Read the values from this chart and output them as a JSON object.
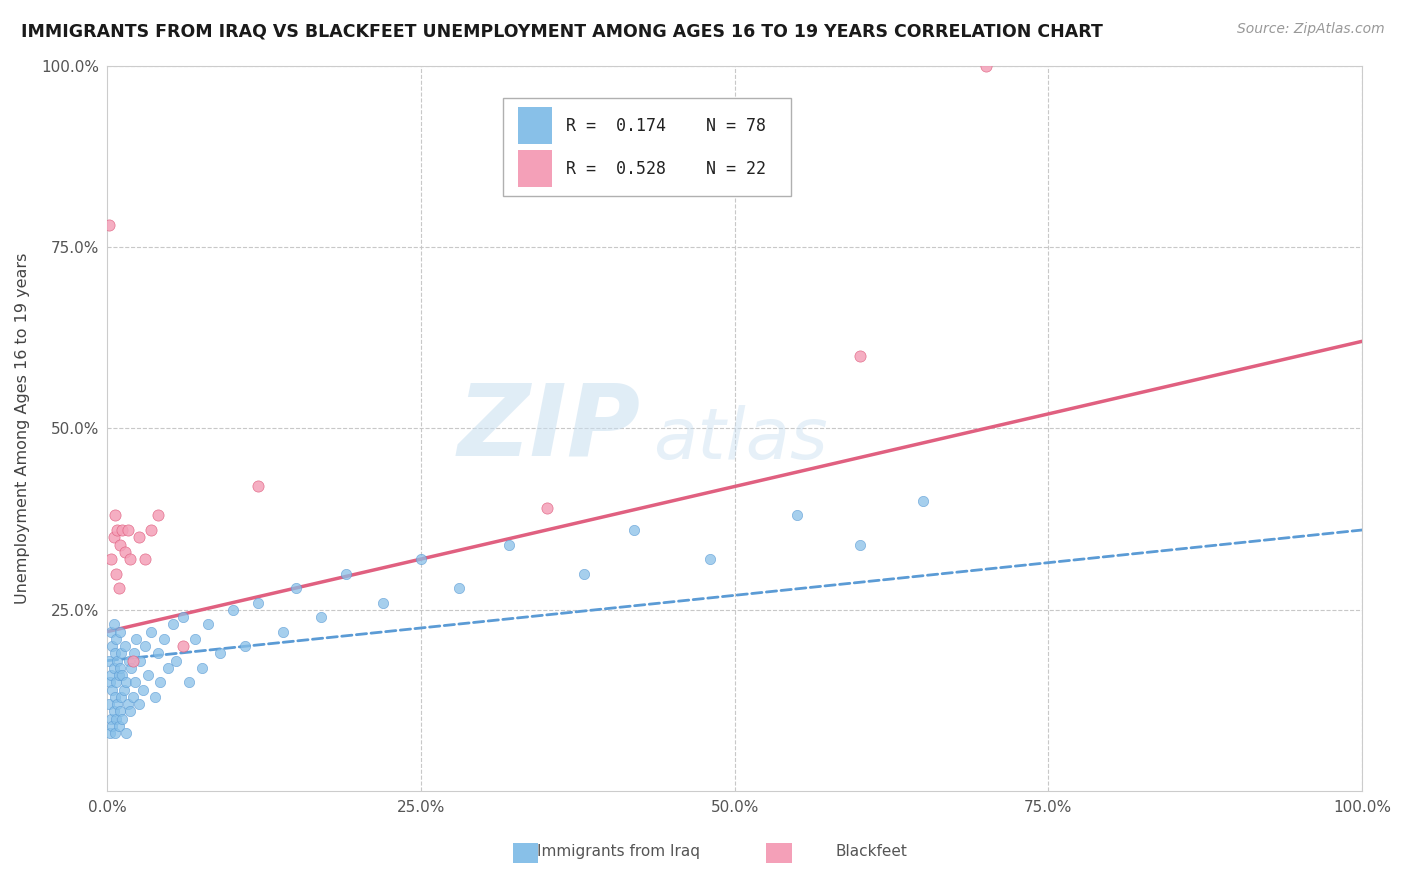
{
  "title": "IMMIGRANTS FROM IRAQ VS BLACKFEET UNEMPLOYMENT AMONG AGES 16 TO 19 YEARS CORRELATION CHART",
  "source": "Source: ZipAtlas.com",
  "ylabel": "Unemployment Among Ages 16 to 19 years",
  "xlim": [
    0.0,
    1.0
  ],
  "ylim": [
    0.0,
    1.0
  ],
  "xticks": [
    0.0,
    0.25,
    0.5,
    0.75,
    1.0
  ],
  "xticklabels": [
    "0.0%",
    "25.0%",
    "50.0%",
    "75.0%",
    "100.0%"
  ],
  "yticks": [
    0.25,
    0.5,
    0.75,
    1.0
  ],
  "yticklabels": [
    "25.0%",
    "50.0%",
    "75.0%",
    "100.0%"
  ],
  "iraq_R": 0.174,
  "iraq_N": 78,
  "blackfeet_R": 0.528,
  "blackfeet_N": 22,
  "iraq_color": "#88c0e8",
  "blackfeet_color": "#f4a0b8",
  "iraq_line_color": "#5b9bd5",
  "blackfeet_line_color": "#e06080",
  "legend_label_iraq": "Immigrants from Iraq",
  "legend_label_blackfeet": "Blackfeet",
  "watermark_zip": "ZIP",
  "watermark_atlas": "atlas",
  "background_color": "#ffffff",
  "grid_color": "#c8c8c8",
  "iraq_line_x0": 0.0,
  "iraq_line_x1": 1.0,
  "iraq_line_y0": 0.18,
  "iraq_line_y1": 0.36,
  "blackfeet_line_x0": 0.0,
  "blackfeet_line_x1": 1.0,
  "blackfeet_line_y0": 0.22,
  "blackfeet_line_y1": 0.62,
  "iraq_scatter_x": [
    0.001,
    0.001,
    0.002,
    0.002,
    0.003,
    0.003,
    0.003,
    0.004,
    0.004,
    0.004,
    0.005,
    0.005,
    0.005,
    0.006,
    0.006,
    0.006,
    0.007,
    0.007,
    0.007,
    0.008,
    0.008,
    0.009,
    0.009,
    0.01,
    0.01,
    0.01,
    0.011,
    0.011,
    0.012,
    0.012,
    0.013,
    0.014,
    0.015,
    0.015,
    0.016,
    0.017,
    0.018,
    0.019,
    0.02,
    0.021,
    0.022,
    0.023,
    0.025,
    0.026,
    0.028,
    0.03,
    0.032,
    0.035,
    0.038,
    0.04,
    0.042,
    0.045,
    0.048,
    0.052,
    0.055,
    0.06,
    0.065,
    0.07,
    0.075,
    0.08,
    0.09,
    0.1,
    0.11,
    0.12,
    0.14,
    0.15,
    0.17,
    0.19,
    0.22,
    0.25,
    0.28,
    0.32,
    0.38,
    0.42,
    0.48,
    0.55,
    0.6,
    0.65
  ],
  "iraq_scatter_y": [
    0.12,
    0.18,
    0.08,
    0.15,
    0.1,
    0.16,
    0.22,
    0.09,
    0.14,
    0.2,
    0.11,
    0.17,
    0.23,
    0.08,
    0.13,
    0.19,
    0.1,
    0.15,
    0.21,
    0.12,
    0.18,
    0.09,
    0.16,
    0.11,
    0.17,
    0.22,
    0.13,
    0.19,
    0.1,
    0.16,
    0.14,
    0.2,
    0.08,
    0.15,
    0.12,
    0.18,
    0.11,
    0.17,
    0.13,
    0.19,
    0.15,
    0.21,
    0.12,
    0.18,
    0.14,
    0.2,
    0.16,
    0.22,
    0.13,
    0.19,
    0.15,
    0.21,
    0.17,
    0.23,
    0.18,
    0.24,
    0.15,
    0.21,
    0.17,
    0.23,
    0.19,
    0.25,
    0.2,
    0.26,
    0.22,
    0.28,
    0.24,
    0.3,
    0.26,
    0.32,
    0.28,
    0.34,
    0.3,
    0.36,
    0.32,
    0.38,
    0.34,
    0.4
  ],
  "blackfeet_scatter_x": [
    0.001,
    0.003,
    0.005,
    0.006,
    0.007,
    0.008,
    0.009,
    0.01,
    0.012,
    0.014,
    0.016,
    0.018,
    0.02,
    0.025,
    0.03,
    0.035,
    0.04,
    0.06,
    0.12,
    0.35,
    0.6,
    0.7
  ],
  "blackfeet_scatter_y": [
    0.78,
    0.32,
    0.35,
    0.38,
    0.3,
    0.36,
    0.28,
    0.34,
    0.36,
    0.33,
    0.36,
    0.32,
    0.18,
    0.35,
    0.32,
    0.36,
    0.38,
    0.2,
    0.42,
    0.39,
    0.6,
    1.0
  ]
}
